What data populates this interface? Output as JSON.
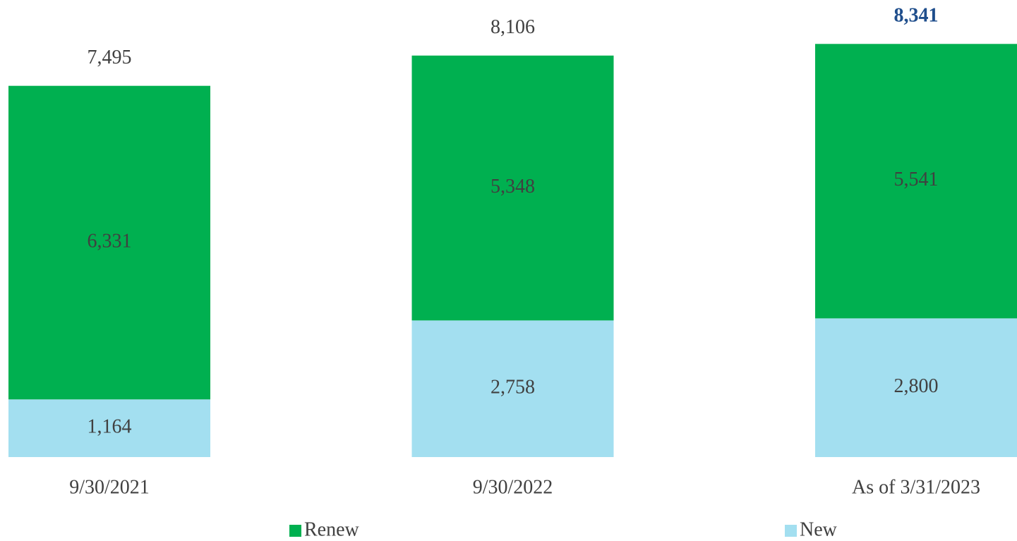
{
  "chart_data": {
    "type": "stacked-bar",
    "categories": [
      "9/30/2021",
      "9/30/2022",
      "As of 3/31/2023"
    ],
    "series": [
      {
        "name": "New",
        "color": "#a3dff0",
        "values": [
          1164,
          2758,
          2800
        ],
        "value_labels": [
          "1,164",
          "2,758",
          "2,800"
        ]
      },
      {
        "name": "Renew",
        "color": "#00b050",
        "values": [
          6331,
          5348,
          5541
        ],
        "value_labels": [
          "6,331",
          "5,348",
          "5,541"
        ]
      }
    ],
    "totals": [
      7495,
      8106,
      8341
    ],
    "total_labels": [
      "7,495",
      "8,106",
      "8,341"
    ],
    "total_colors": [
      "#404040",
      "#404040",
      "#1f4e8c"
    ],
    "total_bold": [
      false,
      false,
      true
    ],
    "legend_order": [
      1,
      0
    ],
    "ylim": [
      0,
      9000
    ]
  }
}
